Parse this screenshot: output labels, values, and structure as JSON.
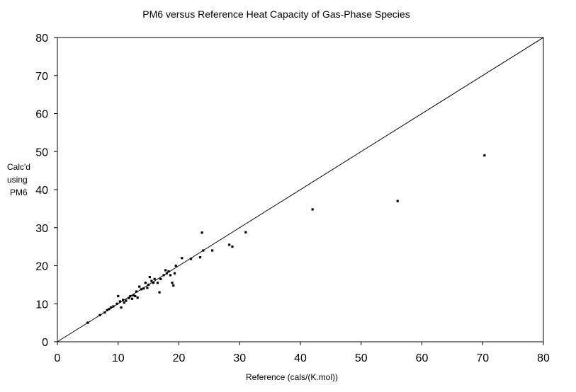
{
  "chart_data": {
    "type": "scatter",
    "title": "PM6 versus Reference Heat Capacity of Gas-Phase Species",
    "xlabel": "Reference (cals/(K.mol))",
    "ylabel_lines": [
      "Calc'd",
      "using",
      "PM6"
    ],
    "xlim": [
      0,
      80
    ],
    "ylim": [
      0,
      80
    ],
    "xticks": [
      "0",
      "10",
      "20",
      "30",
      "40",
      "50",
      "60",
      "70",
      "80"
    ],
    "yticks": [
      "0",
      "10",
      "20",
      "30",
      "40",
      "50",
      "60",
      "70",
      "80"
    ],
    "grid": false,
    "legend": "none",
    "reference_line": [
      [
        0,
        0
      ],
      [
        80,
        80
      ]
    ],
    "points": [
      [
        5.0,
        5.0
      ],
      [
        7.0,
        7.0
      ],
      [
        7.8,
        7.7
      ],
      [
        8.2,
        8.3
      ],
      [
        8.5,
        8.6
      ],
      [
        8.8,
        9.0
      ],
      [
        9.2,
        9.3
      ],
      [
        9.8,
        10.0
      ],
      [
        10.0,
        12.0
      ],
      [
        10.3,
        10.6
      ],
      [
        10.5,
        9.0
      ],
      [
        10.8,
        11.0
      ],
      [
        11.0,
        10.3
      ],
      [
        11.3,
        10.8
      ],
      [
        11.8,
        11.5
      ],
      [
        12.0,
        12.0
      ],
      [
        12.3,
        11.3
      ],
      [
        12.5,
        12.2
      ],
      [
        12.8,
        12.0
      ],
      [
        13.0,
        13.2
      ],
      [
        13.2,
        11.6
      ],
      [
        13.5,
        14.5
      ],
      [
        13.8,
        13.8
      ],
      [
        14.2,
        14.0
      ],
      [
        14.5,
        15.5
      ],
      [
        14.8,
        14.2
      ],
      [
        15.0,
        15.0
      ],
      [
        15.2,
        17.0
      ],
      [
        15.5,
        16.0
      ],
      [
        15.8,
        15.5
      ],
      [
        16.0,
        16.5
      ],
      [
        16.5,
        15.5
      ],
      [
        16.8,
        13.0
      ],
      [
        17.0,
        16.5
      ],
      [
        17.5,
        17.5
      ],
      [
        17.8,
        18.8
      ],
      [
        18.0,
        18.0
      ],
      [
        18.3,
        18.5
      ],
      [
        18.6,
        17.5
      ],
      [
        18.9,
        15.5
      ],
      [
        19.1,
        14.8
      ],
      [
        19.3,
        18.0
      ],
      [
        19.5,
        20.0
      ],
      [
        20.5,
        22.0
      ],
      [
        22.0,
        21.8
      ],
      [
        23.5,
        22.2
      ],
      [
        23.8,
        28.7
      ],
      [
        24.0,
        24.0
      ],
      [
        25.5,
        24.0
      ],
      [
        28.3,
        25.5
      ],
      [
        28.8,
        25.0
      ],
      [
        31.0,
        28.8
      ],
      [
        42.0,
        34.8
      ],
      [
        56.0,
        37.0
      ],
      [
        70.3,
        49.0
      ]
    ],
    "colors": {
      "marker": "#000000",
      "line": "#000000",
      "axes": "#000000",
      "background": "#ffffff"
    }
  }
}
